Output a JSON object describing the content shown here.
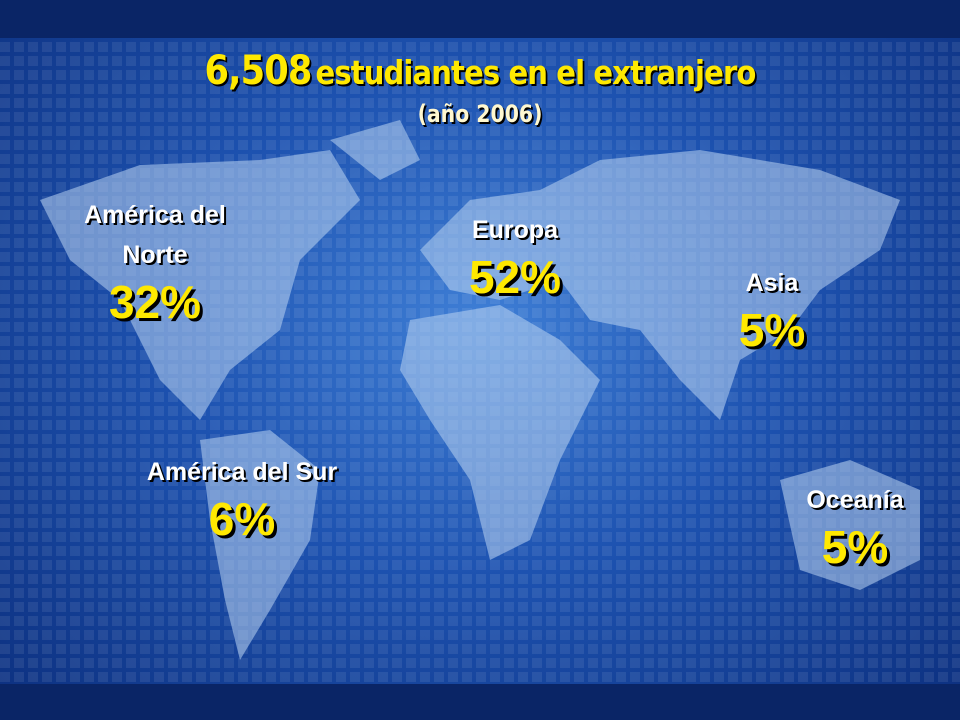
{
  "header": {
    "count": "6,508",
    "title": "estudiantes en el extranjero",
    "subtitle": "(año 2006)"
  },
  "regions": [
    {
      "label": [
        "América del",
        "Norte"
      ],
      "share": "32%"
    },
    {
      "label": [
        "Europa"
      ],
      "share": "52%"
    },
    {
      "label": [
        "Asia"
      ],
      "share": "5%"
    },
    {
      "label": [
        "América del Sur"
      ],
      "share": "6%"
    },
    {
      "label": [
        "Oceanía"
      ],
      "share": "5%"
    }
  ]
}
